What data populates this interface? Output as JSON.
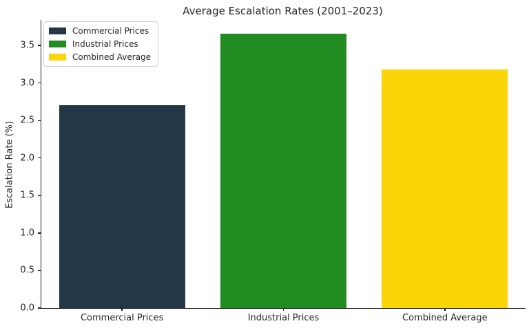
{
  "chart_data": {
    "type": "bar",
    "title": "Average Escalation Rates (2001–2023)",
    "xlabel": "",
    "ylabel": "Escalation Rate (%)",
    "categories": [
      "Commercial Prices",
      "Industrial Prices",
      "Combined Average"
    ],
    "values": [
      2.7,
      3.66,
      3.18
    ],
    "bar_colors": [
      "#243746",
      "#228B22",
      "#FAD507"
    ],
    "legend": [
      {
        "label": "Commercial Prices",
        "color": "#243746"
      },
      {
        "label": "Industrial Prices",
        "color": "#228B22"
      },
      {
        "label": "Combined Average",
        "color": "#FAD507"
      }
    ],
    "legend_position": "upper left",
    "ylim": [
      0,
      3.84
    ],
    "yticks": [
      "0.0",
      "0.5",
      "1.0",
      "1.5",
      "2.0",
      "2.5",
      "3.0",
      "3.5"
    ],
    "grid": false,
    "axis_color": "#1a1a1a",
    "text_color": "#262626",
    "background_color": "#ffffff"
  }
}
